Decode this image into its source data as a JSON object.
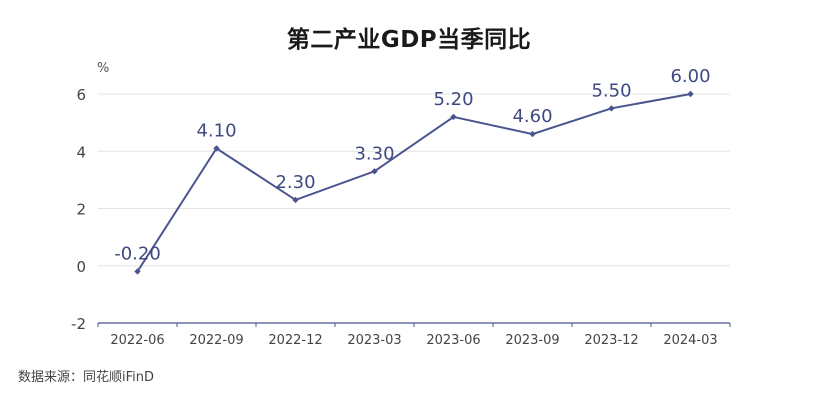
{
  "chart_data": {
    "type": "line",
    "title": "第二产业GDP当季同比",
    "unit": "%",
    "categories": [
      "2022-06",
      "2022-09",
      "2022-12",
      "2023-03",
      "2023-06",
      "2023-09",
      "2023-12",
      "2024-03"
    ],
    "series": [
      {
        "values": [
          -0.2,
          4.1,
          2.3,
          3.3,
          5.2,
          4.6,
          5.5,
          6.0
        ],
        "labels": [
          "-0.20",
          "4.10",
          "2.30",
          "3.30",
          "5.20",
          "4.60",
          "5.50",
          "6.00"
        ],
        "color": "#4a5590"
      }
    ],
    "yticks": [
      "-2",
      "0",
      "2",
      "4",
      "6"
    ],
    "ylim": [
      -2,
      6
    ],
    "grid": true,
    "source": "数据来源：同花顺iFinD"
  }
}
